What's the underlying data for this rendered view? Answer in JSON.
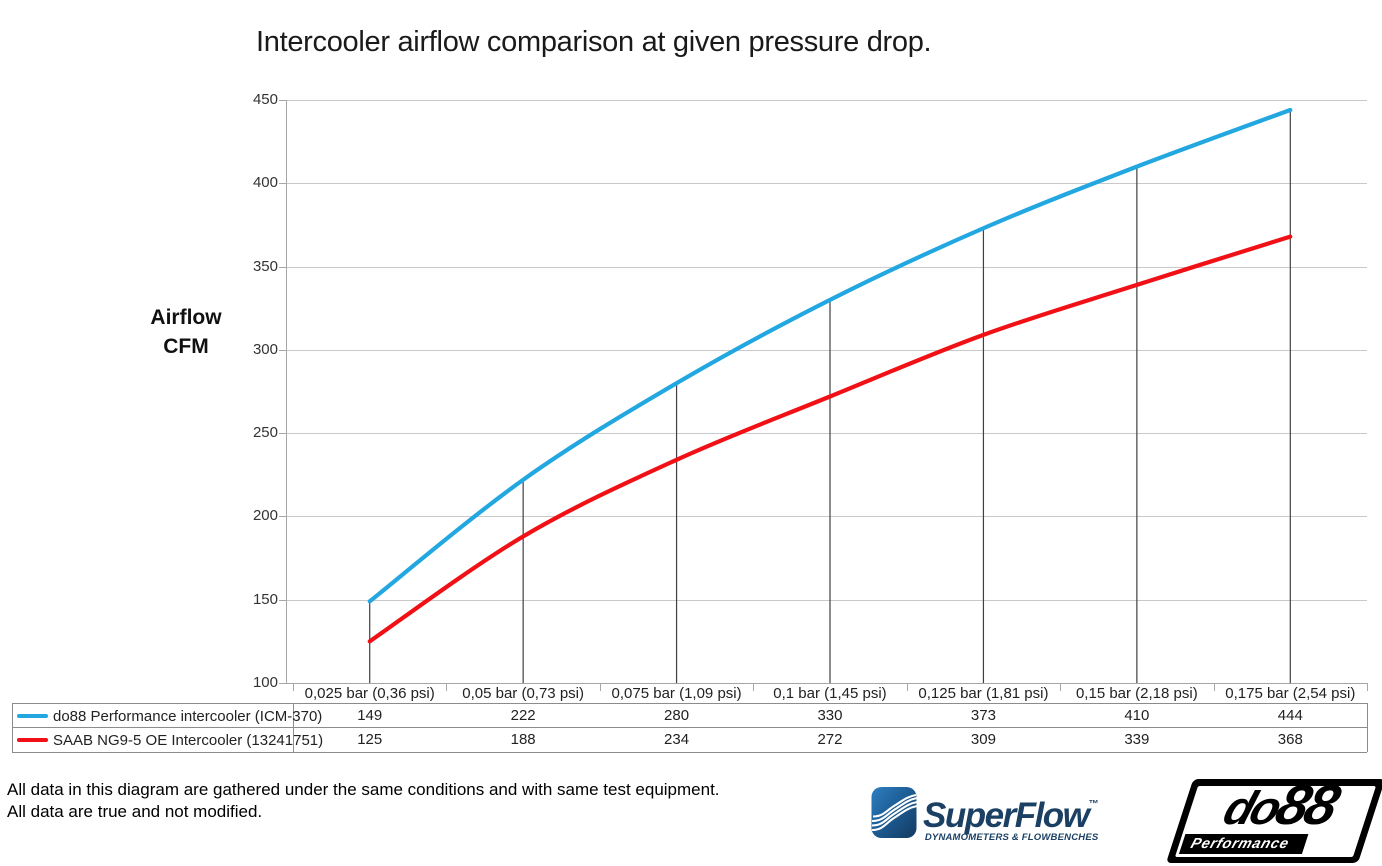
{
  "title": "Intercooler airflow comparison at given pressure drop.",
  "y_axis_unit": {
    "line1": "Airflow",
    "line2": "CFM"
  },
  "footer": {
    "line1": "All data in this diagram are gathered under the same conditions and with same test equipment.",
    "line2": "All data are true and not modified."
  },
  "logos": {
    "superflow": {
      "name": "SuperFlow",
      "trademark": "™",
      "tagline": "DYNAMOMETERS & FLOWBENCHES",
      "text_color": "#1b4064"
    },
    "do88": {
      "name_part1": "do",
      "name_part2": "88",
      "tagline": "Performance",
      "color": "#000000"
    }
  },
  "chart_data": {
    "type": "line",
    "title": "Intercooler airflow comparison at given pressure drop.",
    "ylabel": "Airflow CFM",
    "xlabel": "",
    "ylim": [
      100,
      450
    ],
    "yticks": [
      450,
      400,
      350,
      300,
      250,
      200,
      150,
      100
    ],
    "grid": "horizontal",
    "legend_position": "table-left",
    "categories": [
      "0,025 bar (0,36 psi)",
      "0,05 bar (0,73 psi)",
      "0,075 bar (1,09 psi)",
      "0,1 bar (1,45 psi)",
      "0,125 bar (1,81 psi)",
      "0,15 bar (2,18 psi)",
      "0,175 bar (2,54 psi)"
    ],
    "series": [
      {
        "name": "do88 Performance intercooler (ICM-370)",
        "color": "#22a7e0",
        "values": [
          149,
          222,
          280,
          330,
          373,
          410,
          444
        ]
      },
      {
        "name": "SAAB NG9-5 OE Intercooler (13241751)",
        "color": "#f01015",
        "values": [
          125,
          188,
          234,
          272,
          309,
          339,
          368
        ]
      }
    ],
    "colors": {
      "gridline": "#c9c9c9",
      "axis": "#a6a6a6",
      "droplines": "#404040",
      "table_border": "#8c8c8c"
    }
  }
}
